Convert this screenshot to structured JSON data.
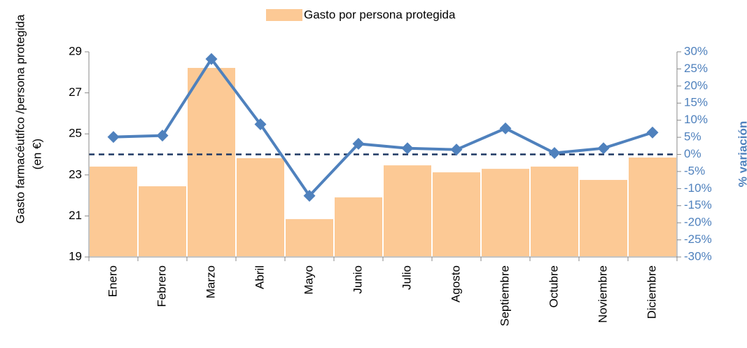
{
  "chart_data": {
    "type": "bar-line",
    "y_label": [
      "Gasto farmacéutifco /persona protegida",
      "(en €)"
    ],
    "y2_label": "% variación",
    "categories": [
      "Enero",
      "Febrero",
      "Marzo",
      "Abril",
      "Mayo",
      "Junio",
      "Julio",
      "Agosto",
      "Septiembre",
      "Octubre",
      "Noviembre",
      "Diciembre"
    ],
    "series": [
      {
        "name": "Gasto por persona protegida",
        "type": "bar",
        "color": "#fcc995",
        "values": [
          23.44,
          22.48,
          28.25,
          23.85,
          20.88,
          21.94,
          23.5,
          23.16,
          23.33,
          23.44,
          22.79,
          23.88
        ]
      },
      {
        "type": "line",
        "axis": "y2",
        "color": "#4f81bd",
        "values": [
          5.1,
          5.5,
          27.9,
          8.8,
          -12.1,
          3.1,
          1.8,
          1.4,
          7.6,
          0.4,
          1.8,
          6.4
        ]
      }
    ],
    "ylim": [
      19,
      29
    ],
    "yticks": [
      19,
      21,
      23,
      25,
      27,
      29
    ],
    "y2lim": [
      -30,
      30
    ],
    "y2ticks": [
      {
        "value": -30,
        "label": "-30%"
      },
      {
        "value": -25,
        "label": "-25%"
      },
      {
        "value": -20,
        "label": "-20%"
      },
      {
        "value": -15,
        "label": "-15%"
      },
      {
        "value": -10,
        "label": "-10%"
      },
      {
        "value": -5,
        "label": "-5%"
      },
      {
        "value": 0,
        "label": "0%"
      },
      {
        "value": 5,
        "label": "5%"
      },
      {
        "value": 10,
        "label": "10%"
      },
      {
        "value": 15,
        "label": "15%"
      },
      {
        "value": 20,
        "label": "20%"
      },
      {
        "value": 25,
        "label": "25%"
      },
      {
        "value": 30,
        "label": "30%"
      }
    ],
    "zero_line": true,
    "legend": "top"
  }
}
